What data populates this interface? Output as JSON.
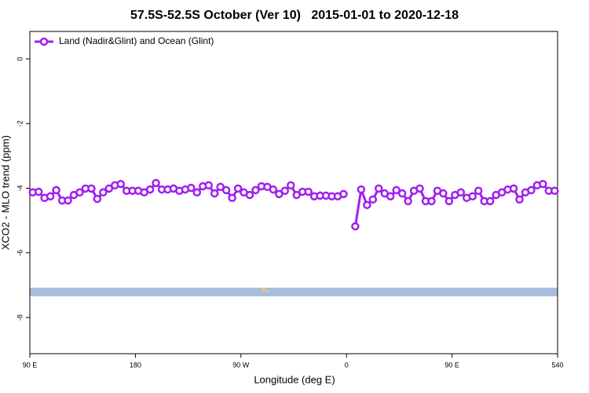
{
  "chart_data": {
    "type": "line",
    "title": "57.5S-52.5S October (Ver 10)   2015-01-01 to 2020-12-18",
    "xlabel": "Longitude (deg E)",
    "ylabel": "XCO2 - MLO trend (ppm)",
    "xlim": [
      90,
      540
    ],
    "ylim": [
      -9.12,
      0.85
    ],
    "xticks": [
      {
        "value": 90,
        "label": "90 E"
      },
      180,
      {
        "value": 270,
        "label": "90 W"
      },
      {
        "value": 360,
        "label": "0"
      },
      {
        "value": 450,
        "label": "90 E"
      },
      540
    ],
    "yticks": [
      0,
      -2,
      -4,
      -6,
      -8
    ],
    "legend": "top-left",
    "x": [
      92.5,
      97.5,
      102.5,
      107.5,
      112.5,
      117.5,
      122.5,
      127.5,
      132.5,
      137.5,
      142.5,
      147.5,
      152.5,
      157.5,
      162.5,
      167.5,
      172.5,
      177.5,
      182.5,
      187.5,
      192.5,
      197.5,
      202.5,
      207.5,
      212.5,
      217.5,
      222.5,
      227.5,
      232.5,
      237.5,
      242.5,
      247.5,
      252.5,
      257.5,
      262.5,
      267.5,
      272.5,
      277.5,
      282.5,
      287.5,
      292.5,
      297.5,
      302.5,
      307.5,
      312.5,
      317.5,
      322.5,
      327.5,
      332.5,
      337.5,
      342.5,
      347.5,
      352.5,
      357.5,
      362.5,
      367.5,
      372.5,
      377.5,
      382.5,
      387.5,
      392.5,
      397.5,
      402.5,
      407.5,
      412.5,
      417.5,
      422.5,
      427.5,
      432.5,
      437.5,
      442.5,
      447.5,
      452.5,
      457.5,
      462.5,
      467.5,
      472.5,
      477.5,
      482.5,
      487.5,
      492.5,
      497.5,
      502.5,
      507.5,
      512.5,
      517.5,
      522.5,
      527.5,
      532.5,
      537.5
    ],
    "series": [
      {
        "name": "Land (Nadir&Glint) and Ocean (Glint)",
        "color": "#a020f0",
        "values": [
          -4.13,
          -4.11,
          -4.3,
          -4.25,
          -4.06,
          -4.38,
          -4.38,
          -4.21,
          -4.13,
          -4.01,
          -4.01,
          -4.33,
          -4.13,
          -4.01,
          -3.91,
          -3.87,
          -4.08,
          -4.08,
          -4.08,
          -4.13,
          -4.04,
          -3.84,
          -4.04,
          -4.04,
          -4.01,
          -4.08,
          -4.04,
          -3.99,
          -4.13,
          -3.94,
          -3.91,
          -4.16,
          -3.96,
          -4.06,
          -4.3,
          -4.01,
          -4.13,
          -4.21,
          -4.06,
          -3.94,
          -3.96,
          -4.04,
          -4.18,
          -4.08,
          -3.91,
          -4.21,
          -4.11,
          -4.11,
          -4.25,
          -4.23,
          -4.23,
          -4.25,
          -4.25,
          -4.18,
          null,
          -5.18,
          -4.04,
          -4.52,
          -4.35,
          -4.01,
          -4.16,
          -4.25,
          -4.06,
          -4.16,
          -4.4,
          -4.08,
          -4.01,
          -4.4,
          -4.4,
          -4.08,
          -4.16,
          -4.4,
          -4.21,
          -4.13,
          -4.3,
          -4.25,
          -4.08,
          -4.4,
          -4.4,
          -4.21,
          -4.13,
          -4.04,
          -4.01,
          -4.35,
          -4.13,
          -4.06,
          -3.91,
          -3.87,
          -4.08,
          -4.08
        ]
      }
    ]
  }
}
